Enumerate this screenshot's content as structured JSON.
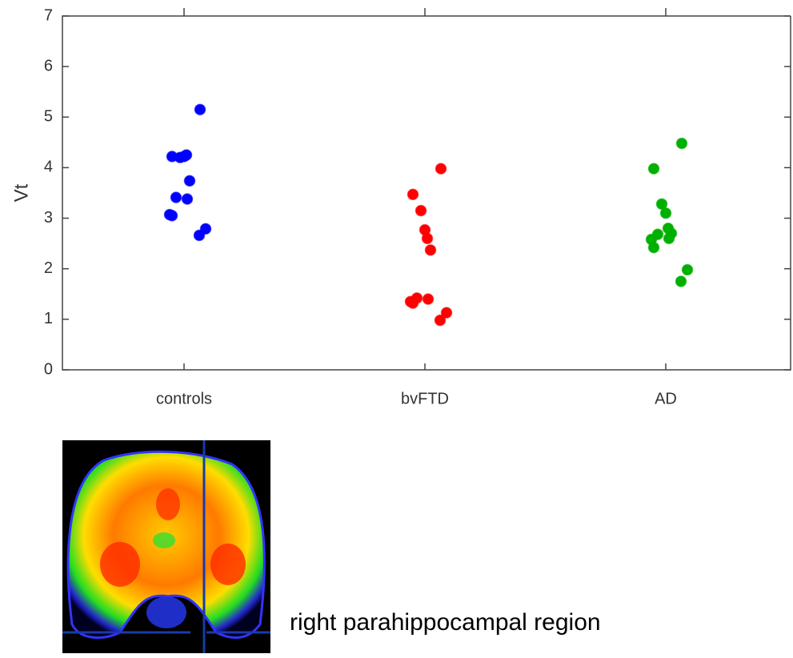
{
  "chart_data": {
    "type": "scatter",
    "y_label": "Vt",
    "categories": [
      "controls",
      "bvFTD",
      "AD"
    ],
    "series": [
      {
        "color": "#0000ff",
        "values": [
          5.15,
          4.22,
          4.2,
          4.22,
          4.25,
          3.74,
          3.41,
          3.38,
          3.07,
          3.05,
          2.79,
          2.66
        ]
      },
      {
        "color": "#ff0000",
        "values": [
          3.98,
          3.47,
          3.15,
          2.77,
          2.6,
          2.37,
          1.42,
          1.4,
          1.35,
          1.32,
          1.13,
          0.98
        ]
      },
      {
        "color": "#00b000",
        "values": [
          4.48,
          3.98,
          3.28,
          3.1,
          2.8,
          2.7,
          2.68,
          2.6,
          2.58,
          2.42,
          1.98,
          1.75
        ]
      }
    ],
    "ylim": [
      0,
      7
    ],
    "yticks": [
      0,
      1,
      2,
      3,
      4,
      5,
      6,
      7
    ],
    "grid": false
  },
  "caption": "right parahippocampal region"
}
